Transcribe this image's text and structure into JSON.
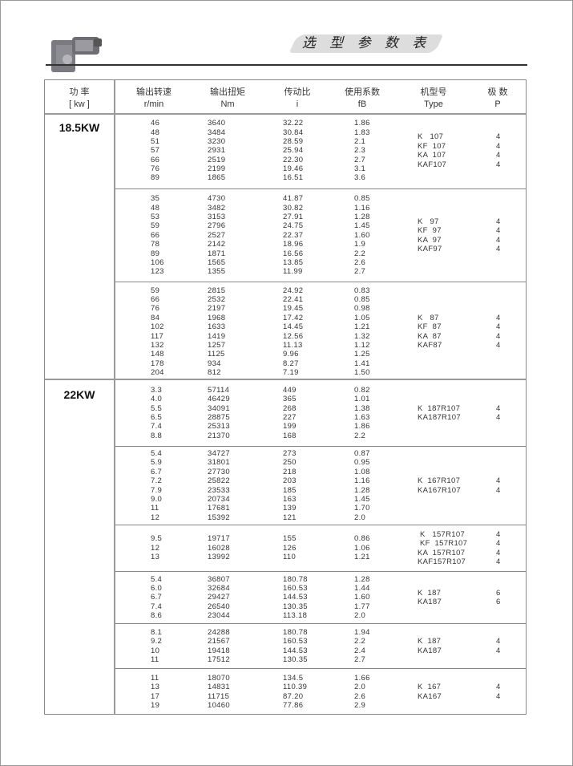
{
  "header": {
    "title": "选 型 参 数 表"
  },
  "table": {
    "columns": [
      {
        "zh": "功 率",
        "en": "[ kw ]"
      },
      {
        "zh": "输出转速",
        "en": "r/min"
      },
      {
        "zh": "输出扭矩",
        "en": "Nm"
      },
      {
        "zh": "传动比",
        "en": "i"
      },
      {
        "zh": "使用系数",
        "en": "fB"
      },
      {
        "zh": "机型号",
        "en": "Type"
      },
      {
        "zh": "极 数",
        "en": "P"
      }
    ],
    "sections": [
      {
        "power": "18.5KW",
        "groups": [
          {
            "rows": [
              [
                "46",
                "3640",
                "32.22",
                "1.86"
              ],
              [
                "48",
                "3484",
                "30.84",
                "1.83"
              ],
              [
                "51",
                "3230",
                "28.59",
                "2.1"
              ],
              [
                "57",
                "2931",
                "25.94",
                "2.3"
              ],
              [
                "66",
                "2519",
                "22.30",
                "2.7"
              ],
              [
                "76",
                "2199",
                "19.46",
                "3.1"
              ],
              [
                "89",
                "1865",
                "16.51",
                "3.6"
              ]
            ],
            "types": [
              [
                "K   107",
                "4"
              ],
              [
                "KF  107",
                "4"
              ],
              [
                "KA  107",
                "4"
              ],
              [
                "KAF107",
                "4"
              ]
            ]
          },
          {
            "rows": [
              [
                "35",
                "4730",
                "41.87",
                "0.85"
              ],
              [
                "48",
                "3482",
                "30.82",
                "1.16"
              ],
              [
                "53",
                "3153",
                "27.91",
                "1.28"
              ],
              [
                "59",
                "2796",
                "24.75",
                "1.45"
              ],
              [
                "66",
                "2527",
                "22.37",
                "1.60"
              ],
              [
                "78",
                "2142",
                "18.96",
                "1.9"
              ],
              [
                "89",
                "1871",
                "16.56",
                "2.2"
              ],
              [
                "106",
                "1565",
                "13.85",
                "2.6"
              ],
              [
                "123",
                "1355",
                "11.99",
                "2.7"
              ]
            ],
            "types": [
              [
                "K   97",
                "4"
              ],
              [
                "KF  97",
                "4"
              ],
              [
                "KA  97",
                "4"
              ],
              [
                "KAF97",
                "4"
              ]
            ]
          },
          {
            "rows": [
              [
                "59",
                "2815",
                "24.92",
                "0.83"
              ],
              [
                "66",
                "2532",
                "22.41",
                "0.85"
              ],
              [
                "76",
                "2197",
                "19.45",
                "0.98"
              ],
              [
                "84",
                "1968",
                "17.42",
                "1.05"
              ],
              [
                "102",
                "1633",
                "14.45",
                "1.21"
              ],
              [
                "117",
                "1419",
                "12.56",
                "1.32"
              ],
              [
                "132",
                "1257",
                "11.13",
                "1.12"
              ],
              [
                "148",
                "1125",
                "9.96",
                "1.25"
              ],
              [
                "178",
                "934",
                "8.27",
                "1.41"
              ],
              [
                "204",
                "812",
                "7.19",
                "1.50"
              ]
            ],
            "types": [
              [
                "K   87",
                "4"
              ],
              [
                "KF  87",
                "4"
              ],
              [
                "KA  87",
                "4"
              ],
              [
                "KAF87",
                "4"
              ]
            ]
          }
        ]
      },
      {
        "power": "22KW",
        "groups": [
          {
            "rows": [
              [
                "3.3",
                "57114",
                "449",
                "0.82"
              ],
              [
                "4.0",
                "46429",
                "365",
                "1.01"
              ],
              [
                "5.5",
                "34091",
                "268",
                "1.38"
              ],
              [
                "6.5",
                "28875",
                "227",
                "1.63"
              ],
              [
                "7.4",
                "25313",
                "199",
                "1.86"
              ],
              [
                "8.8",
                "21370",
                "168",
                "2.2"
              ]
            ],
            "types": [
              [
                "K  187R107",
                "4"
              ],
              [
                "KA187R107",
                "4"
              ]
            ]
          },
          {
            "rows": [
              [
                "5.4",
                "34727",
                "273",
                "0.87"
              ],
              [
                "5.9",
                "31801",
                "250",
                "0.95"
              ],
              [
                "6.7",
                "27730",
                "218",
                "1.08"
              ],
              [
                "7.2",
                "25822",
                "203",
                "1.16"
              ],
              [
                "7.9",
                "23533",
                "185",
                "1.28"
              ],
              [
                "9.0",
                "20734",
                "163",
                "1.45"
              ],
              [
                "11",
                "17681",
                "139",
                "1.70"
              ],
              [
                "12",
                "15392",
                "121",
                "2.0"
              ]
            ],
            "types": [
              [
                "K  167R107",
                "4"
              ],
              [
                "KA167R107",
                "4"
              ]
            ]
          },
          {
            "rows": [
              [
                "9.5",
                "19717",
                "155",
                "0.86"
              ],
              [
                "12",
                "16028",
                "126",
                "1.06"
              ],
              [
                "13",
                "13992",
                "110",
                "1.21"
              ]
            ],
            "types": [
              [
                " K   157R107",
                "4"
              ],
              [
                " KF  157R107",
                "4"
              ],
              [
                "KA  157R107",
                "4"
              ],
              [
                "KAF157R107",
                "4"
              ]
            ]
          },
          {
            "rows": [
              [
                "5.4",
                "36807",
                "180.78",
                "1.28"
              ],
              [
                "6.0",
                "32684",
                "160.53",
                "1.44"
              ],
              [
                "6.7",
                "29427",
                "144.53",
                "1.60"
              ],
              [
                "7.4",
                "26540",
                "130.35",
                "1.77"
              ],
              [
                "8.6",
                "23044",
                "113.18",
                "2.0"
              ]
            ],
            "types": [
              [
                "K  187",
                "6"
              ],
              [
                "KA187",
                "6"
              ]
            ]
          },
          {
            "rows": [
              [
                "8.1",
                "24288",
                "180.78",
                "1.94"
              ],
              [
                "9.2",
                "21567",
                "160.53",
                "2.2"
              ],
              [
                "10",
                "19418",
                "144.53",
                "2.4"
              ],
              [
                "11",
                "17512",
                "130.35",
                "2.7"
              ]
            ],
            "types": [
              [
                "K  187",
                "4"
              ],
              [
                "KA187",
                "4"
              ]
            ]
          },
          {
            "rows": [
              [
                "11",
                "18070",
                "134.5",
                "1.66"
              ],
              [
                "13",
                "14831",
                "110.39",
                "2.0"
              ],
              [
                "17",
                "11715",
                "87.20",
                "2.6"
              ],
              [
                "19",
                "10460",
                "77.86",
                "2.9"
              ]
            ],
            "types": [
              [
                "K  167",
                "4"
              ],
              [
                "KA167",
                "4"
              ]
            ]
          }
        ]
      }
    ]
  }
}
